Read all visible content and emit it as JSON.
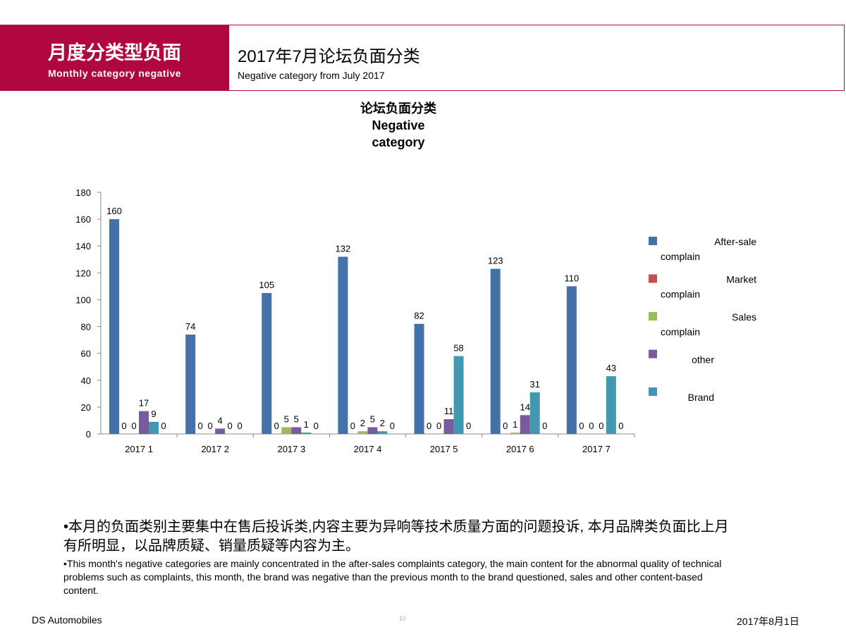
{
  "header": {
    "section_title": "月度分类型负面",
    "section_subtitle": "Monthly category  negative",
    "title": "2017年7月论坛负面分类",
    "subtitle": "Negative  category from July 2017"
  },
  "chart_data": {
    "type": "bar",
    "title_lines": [
      "论坛负面分类",
      "Negative",
      "category"
    ],
    "categories": [
      "2017    1",
      "2017    2",
      "2017    3",
      "2017    4",
      "2017    5",
      "2017    6",
      "2017    7"
    ],
    "ylim": [
      0,
      180
    ],
    "yticks": [
      0,
      20,
      40,
      60,
      80,
      100,
      120,
      140,
      160,
      180
    ],
    "grid": false,
    "legend_position": "right",
    "series": [
      {
        "name": "After-sale complain",
        "color": "#4472a8",
        "values": [
          160,
          74,
          105,
          132,
          82,
          123,
          110
        ]
      },
      {
        "name": "Market complain",
        "color": "#c0504d",
        "values": [
          0,
          0,
          0,
          0,
          0,
          0,
          0
        ]
      },
      {
        "name": "Sales complain",
        "color": "#9bbb59",
        "values": [
          0,
          0,
          5,
          2,
          0,
          1,
          0
        ]
      },
      {
        "name": "other",
        "color": "#7a5a9e",
        "values": [
          17,
          4,
          5,
          5,
          11,
          14,
          0
        ]
      },
      {
        "name": "Brand",
        "color": "#4198b0",
        "values": [
          9,
          0,
          1,
          2,
          58,
          31,
          43
        ]
      },
      {
        "color": "#f79646",
        "values": [
          0,
          0,
          0,
          0,
          0,
          0,
          0
        ]
      }
    ]
  },
  "body": {
    "bullet_cn": "•本月的负面类别主要集中在售后投诉类,内容主要为异响等技术质量方面的问题投诉, 本月品牌类负面比上月有所明显，以品牌质疑、销量质疑等内容为主。",
    "bullet_en": "•This month's negative categories are mainly concentrated in the after-sales complaints category, the main content for the abnormal quality of technical problems such as complaints, this month, the brand was negative than the previous month to the brand questioned, sales and other content-based content."
  },
  "footer": {
    "company": "DS Automobiles",
    "page": "10",
    "date": "2017年8月1日"
  }
}
